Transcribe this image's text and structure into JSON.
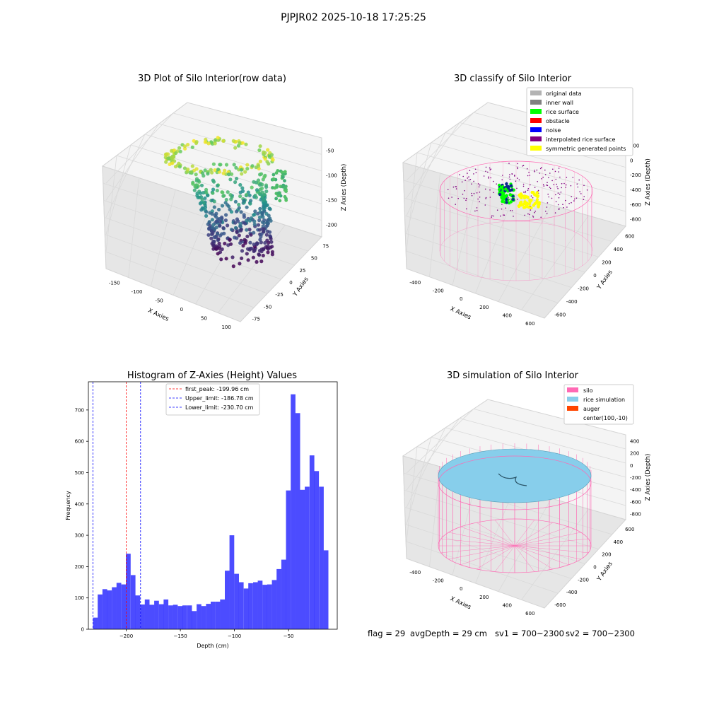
{
  "suptitle": "PJPJR02 2025-10-18 17:25:25",
  "plots": {
    "raw": {
      "title": "3D Plot of Silo Interior(row data)",
      "xlabel": "X Axies",
      "ylabel": "Y Axies",
      "zlabel": "Z Axies (Depth)",
      "xticks": [
        "-150",
        "-100",
        "-50",
        "0",
        "50",
        "100"
      ],
      "yticks": [
        "-75",
        "-50",
        "-25",
        "0",
        "25",
        "50",
        "75"
      ],
      "zticks": [
        "-50",
        "-100",
        "-150",
        "-200"
      ]
    },
    "classify": {
      "title": "3D classify of Silo Interior",
      "xlabel": "X Axies",
      "ylabel": "Y Axies",
      "zlabel": "Z Axies (Depth)",
      "xticks": [
        "-400",
        "-200",
        "0",
        "200",
        "400",
        "600"
      ],
      "yticks": [
        "-600",
        "-400",
        "-200",
        "0",
        "200",
        "400",
        "600"
      ],
      "zticks": [
        "200",
        "0",
        "-200",
        "-400",
        "-600",
        "-800"
      ],
      "legend": [
        {
          "label": "original data",
          "color": "#b3b3b3"
        },
        {
          "label": "inner wall",
          "color": "#808080"
        },
        {
          "label": "rice surface",
          "color": "#00ff00"
        },
        {
          "label": "obstacle",
          "color": "#ff0000"
        },
        {
          "label": "noise",
          "color": "#0000ff"
        },
        {
          "label": "interpolated rice surface",
          "color": "#800080"
        },
        {
          "label": "symmetric generated points",
          "color": "#ffff00"
        }
      ]
    },
    "simulation": {
      "title": "3D simulation of Silo Interior",
      "xlabel": "X Axies",
      "ylabel": "Y Axies",
      "zlabel": "Z Axies (Depth)",
      "xticks": [
        "-400",
        "-200",
        "0",
        "200",
        "400",
        "600"
      ],
      "yticks": [
        "-600",
        "-400",
        "-200",
        "0",
        "200",
        "400",
        "600"
      ],
      "zticks": [
        "400",
        "200",
        "0",
        "-200",
        "-400",
        "-600",
        "-800"
      ],
      "legend": [
        {
          "label": "silo",
          "color": "#ff69b4"
        },
        {
          "label": "rice simulation",
          "color": "#87ceeb"
        },
        {
          "label": "auger",
          "color": "#ff4500"
        },
        {
          "label": "center(100,-10)",
          "color": ""
        }
      ]
    }
  },
  "chart_data": {
    "type": "bar",
    "title": "Histogram of Z-Axies (Height) Values",
    "xlabel": "Depth (cm)",
    "ylabel": "Frequency",
    "bar_color": "#0000ff",
    "bin_width": 4.35,
    "x": [
      -228.5,
      -224.2,
      -219.8,
      -215.5,
      -211.1,
      -206.8,
      -202.4,
      -198.1,
      -193.7,
      -189.4,
      -185.0,
      -180.7,
      -176.3,
      -172.0,
      -167.6,
      -163.3,
      -158.9,
      -154.6,
      -150.2,
      -145.9,
      -141.5,
      -137.2,
      -132.8,
      -128.5,
      -124.1,
      -119.8,
      -115.4,
      -111.1,
      -106.7,
      -102.4,
      -98.0,
      -93.7,
      -89.3,
      -85.0,
      -80.6,
      -76.3,
      -71.9,
      -67.6,
      -63.2,
      -58.9,
      -54.5,
      -50.2,
      -45.8,
      -41.5,
      -37.1,
      -32.8,
      -28.4,
      -24.1,
      -19.7,
      -15.4,
      -11.0
    ],
    "values": [
      37,
      111,
      128,
      124,
      134,
      148,
      143,
      241,
      173,
      108,
      79,
      95,
      78,
      91,
      80,
      95,
      76,
      78,
      74,
      76,
      76,
      58,
      80,
      74,
      81,
      88,
      88,
      95,
      187,
      300,
      177,
      150,
      130,
      147,
      150,
      155,
      142,
      143,
      157,
      192,
      222,
      443,
      750,
      690,
      445,
      455,
      555,
      505,
      455,
      252,
      0
    ],
    "xlim": [
      -235,
      -5
    ],
    "ylim": [
      0,
      790
    ],
    "xticks": [
      -200,
      -150,
      -100,
      -50
    ],
    "yticks": [
      0,
      100,
      200,
      300,
      400,
      500,
      600,
      700
    ],
    "vlines": [
      {
        "label": "first_peak: -199.96 cm",
        "x": -199.96,
        "color": "#ff0000"
      },
      {
        "label": "Upper_limit: -186.78 cm",
        "x": -186.78,
        "color": "#0000ff"
      },
      {
        "label": "Lower_limit: -230.70 cm",
        "x": -230.7,
        "color": "#0000ff"
      }
    ],
    "legend_position": "upper-center",
    "grid": false
  },
  "footer": {
    "flag": "flag = 29",
    "avgdepth": "avgDepth = 29 cm",
    "sv1": "sv1 = 700~2300",
    "sv2": "sv2 = 700~2300"
  }
}
